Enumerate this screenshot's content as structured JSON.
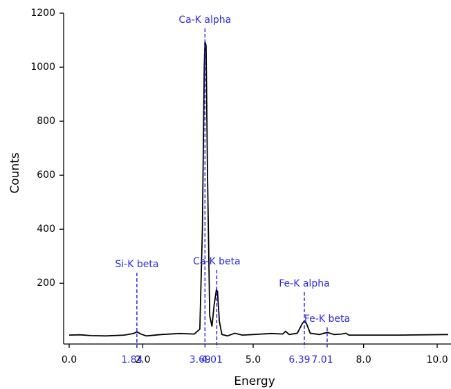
{
  "chart_data": {
    "type": "line",
    "xlabel": "Energy",
    "ylabel": "Counts",
    "xlim": [
      0,
      10.3
    ],
    "ylim": [
      -25,
      1200
    ],
    "xticks": [
      {
        "value": 0,
        "label": "0.0"
      },
      {
        "value": 2,
        "label": "2.0"
      },
      {
        "value": 5,
        "label": "5.0"
      },
      {
        "value": 8,
        "label": "8.0"
      },
      {
        "value": 10,
        "label": "10.0"
      }
    ],
    "yticks": [
      200,
      400,
      600,
      800,
      1000,
      1200
    ],
    "color": "#000000",
    "annotation_color": "#2a2ae6",
    "x": [
      0,
      0.3,
      0.6,
      1.0,
      1.5,
      1.75,
      1.84,
      1.95,
      2.1,
      2.5,
      3.0,
      3.4,
      3.55,
      3.62,
      3.67,
      3.69,
      3.72,
      3.76,
      3.82,
      3.88,
      3.94,
      4.0,
      4.03,
      4.08,
      4.15,
      4.3,
      4.5,
      4.7,
      5.0,
      5.5,
      5.8,
      5.88,
      5.98,
      6.2,
      6.33,
      6.39,
      6.45,
      6.55,
      6.8,
      7.01,
      7.2,
      7.4,
      7.52,
      7.6,
      8.0,
      9.0,
      10.3
    ],
    "values": [
      8,
      9,
      6,
      5,
      8,
      14,
      20,
      12,
      5,
      10,
      14,
      12,
      30,
      400,
      1000,
      1095,
      1080,
      600,
      80,
      40,
      120,
      175,
      170,
      60,
      10,
      5,
      15,
      8,
      10,
      14,
      12,
      22,
      10,
      15,
      50,
      60,
      50,
      15,
      10,
      18,
      10,
      12,
      15,
      8,
      8,
      8,
      10
    ],
    "annotations": [
      {
        "text": "Si-K beta",
        "x": 1.84
      },
      {
        "text": "Ca-K alpha",
        "x": 3.69
      },
      {
        "text": "Ca-K beta",
        "x": 4.01
      },
      {
        "text": "Fe-K alpha",
        "x": 6.39
      },
      {
        "text": "Fe-K beta",
        "x": 7.01
      }
    ]
  }
}
